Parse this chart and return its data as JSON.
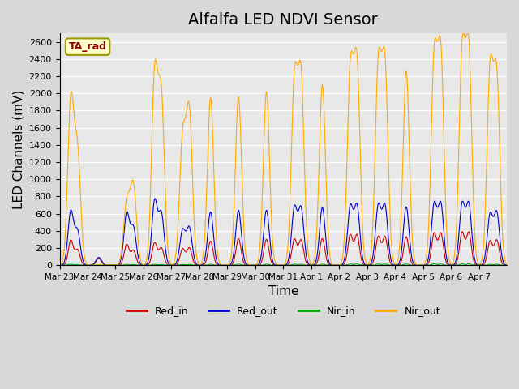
{
  "title": "Alfalfa LED NDVI Sensor",
  "xlabel": "Time",
  "ylabel": "LED Channels (mV)",
  "ylim": [
    0,
    2700
  ],
  "yticks": [
    0,
    200,
    400,
    600,
    800,
    1000,
    1200,
    1400,
    1600,
    1800,
    2000,
    2200,
    2400,
    2600
  ],
  "xtick_labels": [
    "Mar 23",
    "Mar 24",
    "Mar 25",
    "Mar 26",
    "Mar 27",
    "Mar 28",
    "Mar 29",
    "Mar 30",
    "Mar 31",
    "Apr 1",
    "Apr 2",
    "Apr 3",
    "Apr 4",
    "Apr 5",
    "Apr 6",
    "Apr 7"
  ],
  "annotation_text": "TA_rad",
  "colors": {
    "Red_in": "#cc0000",
    "Red_out": "#0000cc",
    "Nir_in": "#00aa00",
    "Nir_out": "#ffaa00"
  },
  "title_fontsize": 14,
  "axis_fontsize": 11,
  "num_days": 16,
  "peak_nir_out": [
    1880,
    0,
    710,
    2170,
    1430,
    1950,
    1960,
    2020,
    2100,
    2100,
    2200,
    2250,
    2260,
    2340,
    2400,
    2190
  ],
  "peak_red_out": [
    620,
    90,
    600,
    740,
    400,
    620,
    640,
    640,
    660,
    670,
    670,
    680,
    680,
    700,
    700,
    580
  ],
  "peak_red_in": [
    290,
    80,
    240,
    260,
    190,
    280,
    310,
    300,
    300,
    310,
    350,
    330,
    330,
    370,
    380,
    280
  ],
  "second_peak_nir_out": [
    1280,
    0,
    910,
    1900,
    1740,
    0,
    0,
    0,
    2120,
    0,
    2260,
    2260,
    0,
    2380,
    2400,
    2120
  ],
  "second_peak_red_out": [
    390,
    0,
    430,
    590,
    430,
    0,
    0,
    0,
    650,
    0,
    680,
    680,
    0,
    700,
    700,
    600
  ],
  "second_peak_red_in": [
    180,
    0,
    170,
    200,
    200,
    0,
    0,
    0,
    290,
    0,
    350,
    330,
    0,
    370,
    380,
    290
  ]
}
